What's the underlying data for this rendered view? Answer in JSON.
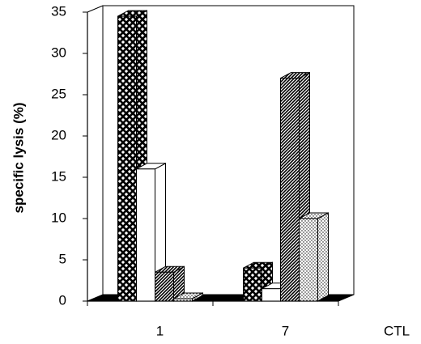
{
  "chart_data": {
    "type": "bar3d",
    "y_label": "specific lysis (%)",
    "x_label": "CTL",
    "categories": [
      "1",
      "7"
    ],
    "series": [
      {
        "pattern": "crosshatch",
        "color": "#000000",
        "values": [
          34.5,
          4
        ]
      },
      {
        "pattern": "solid",
        "color": "#ffffff",
        "values": [
          16,
          1.5
        ]
      },
      {
        "pattern": "diagonal",
        "color": "#000000",
        "values": [
          3.5,
          27
        ]
      },
      {
        "pattern": "dots",
        "color": "#000000",
        "values": [
          0.3,
          10
        ]
      }
    ],
    "ylim": [
      0,
      35
    ],
    "yticks": [
      0,
      5,
      10,
      15,
      20,
      25,
      30,
      35
    ]
  }
}
